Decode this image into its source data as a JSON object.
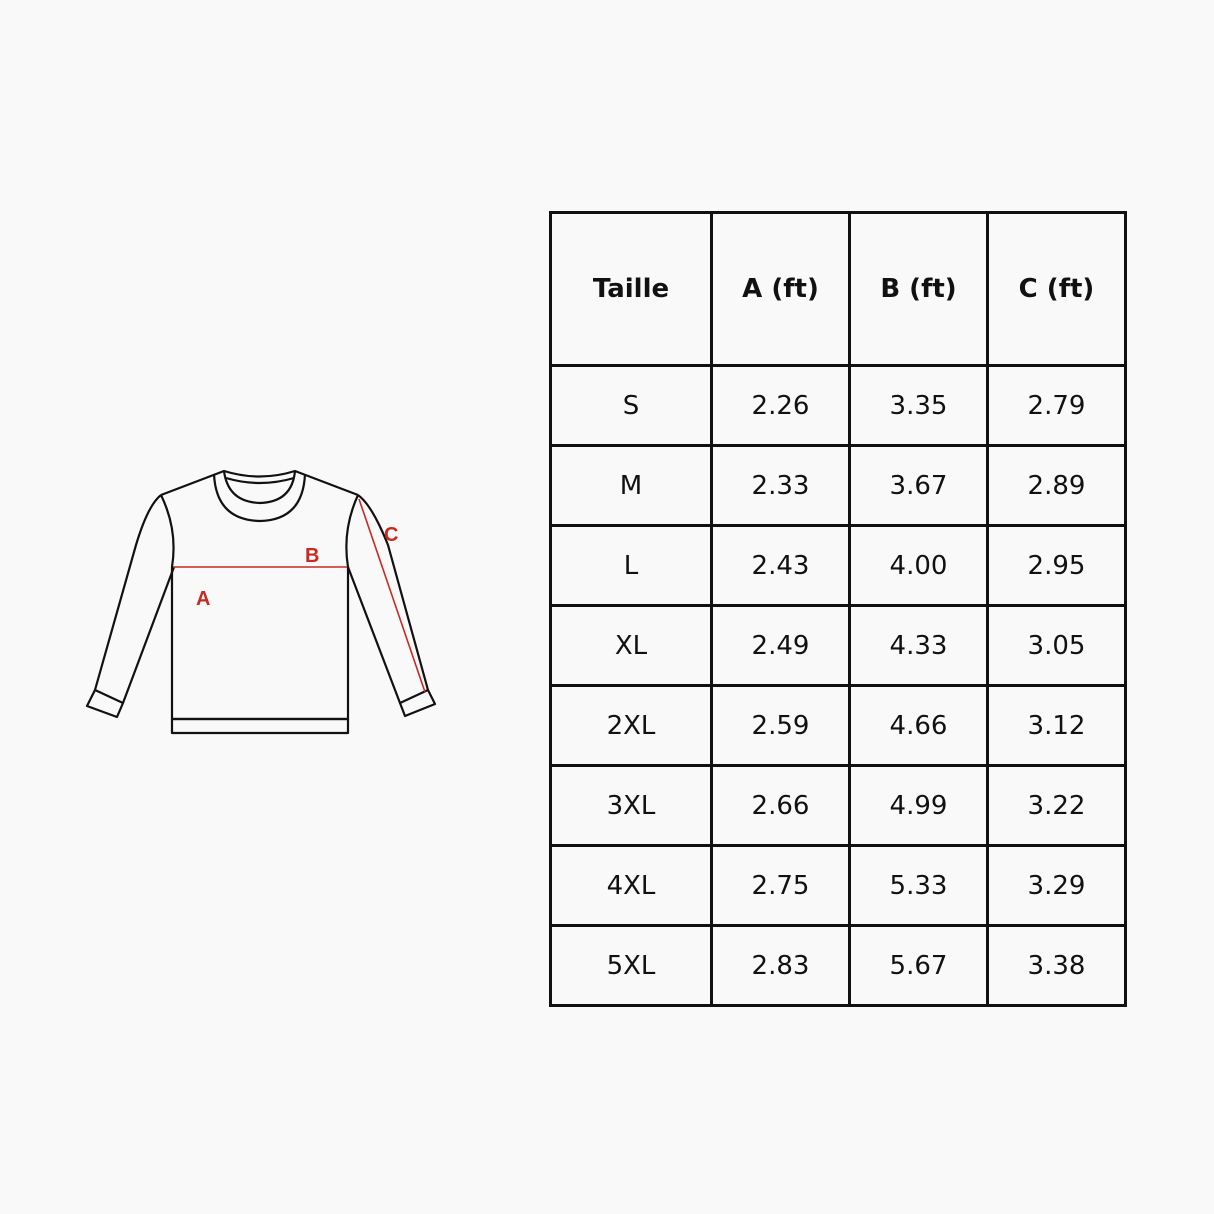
{
  "diagram": {
    "labels": {
      "a": "A",
      "b": "B",
      "c": "C"
    },
    "accent_color": "#c62a22"
  },
  "table": {
    "headers": [
      "Taille",
      "A (ft)",
      "B (ft)",
      "C (ft)"
    ],
    "rows": [
      [
        "S",
        "2.26",
        "3.35",
        "2.79"
      ],
      [
        "M",
        "2.33",
        "3.67",
        "2.89"
      ],
      [
        "L",
        "2.43",
        "4.00",
        "2.95"
      ],
      [
        "XL",
        "2.49",
        "4.33",
        "3.05"
      ],
      [
        "2XL",
        "2.59",
        "4.66",
        "3.12"
      ],
      [
        "3XL",
        "2.66",
        "4.99",
        "3.22"
      ],
      [
        "4XL",
        "2.75",
        "5.33",
        "3.29"
      ],
      [
        "5XL",
        "2.83",
        "5.67",
        "3.38"
      ]
    ]
  }
}
